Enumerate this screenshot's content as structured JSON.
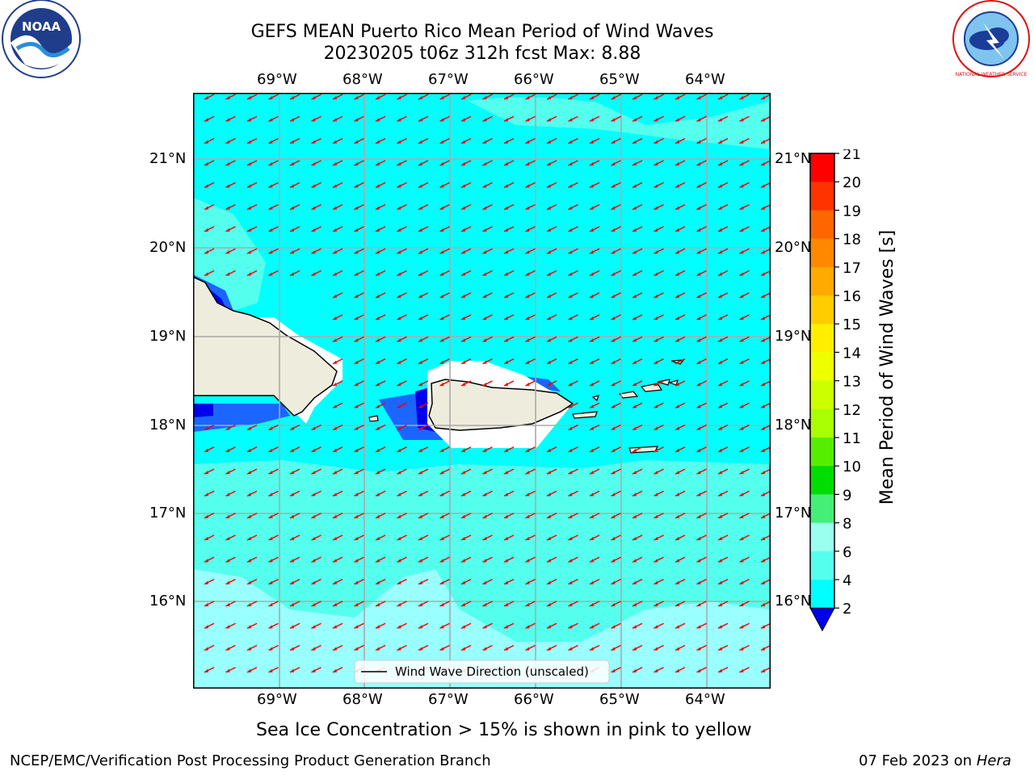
{
  "title_line1": "GEFS MEAN Puerto Rico Mean Period of Wind Waves",
  "title_line2": "20230205 t06z 312h fcst   Max: 8.88",
  "lon_labels": [
    "69°W",
    "68°W",
    "67°W",
    "66°W",
    "65°W",
    "64°W"
  ],
  "lat_labels": [
    "21°N",
    "20°N",
    "19°N",
    "18°N",
    "17°N",
    "16°N"
  ],
  "legend_label": "Wind Wave Direction (unscaled)",
  "sea_ice_note": "Sea Ice Concentration > 15% is shown in pink to yellow",
  "footer_left": "NCEP/EMC/Verification Post Processing Product Generation Branch",
  "footer_date": "07 Feb 2023 on ",
  "footer_host": "Hera",
  "colorbar": {
    "label": "Mean Period of Wind Waves [s]",
    "ticks": [
      "21",
      "20",
      "19",
      "18",
      "17",
      "16",
      "15",
      "14",
      "13",
      "12",
      "11",
      "10",
      "9",
      "8",
      "6",
      "4",
      "2"
    ],
    "colors": [
      "#ff0000",
      "#ff3300",
      "#ff6600",
      "#ff8800",
      "#ffaa00",
      "#ffcc00",
      "#ffee00",
      "#eeff00",
      "#ccff00",
      "#aaff00",
      "#55ee00",
      "#00dd00",
      "#44ee77",
      "#99ffee",
      "#55ffee",
      "#00ffff",
      "#0077ff",
      "#0000ee"
    ]
  },
  "logos": {
    "noaa_text": "NOAA",
    "nws_text": "NATIONAL WEATHER SERVICE"
  },
  "colors": {
    "ocean": "#00ffff",
    "ocean_light": "#99ffff",
    "land": "#eeecdc",
    "arrow": "#ee0000",
    "deep_blue": "#1a66ff"
  }
}
